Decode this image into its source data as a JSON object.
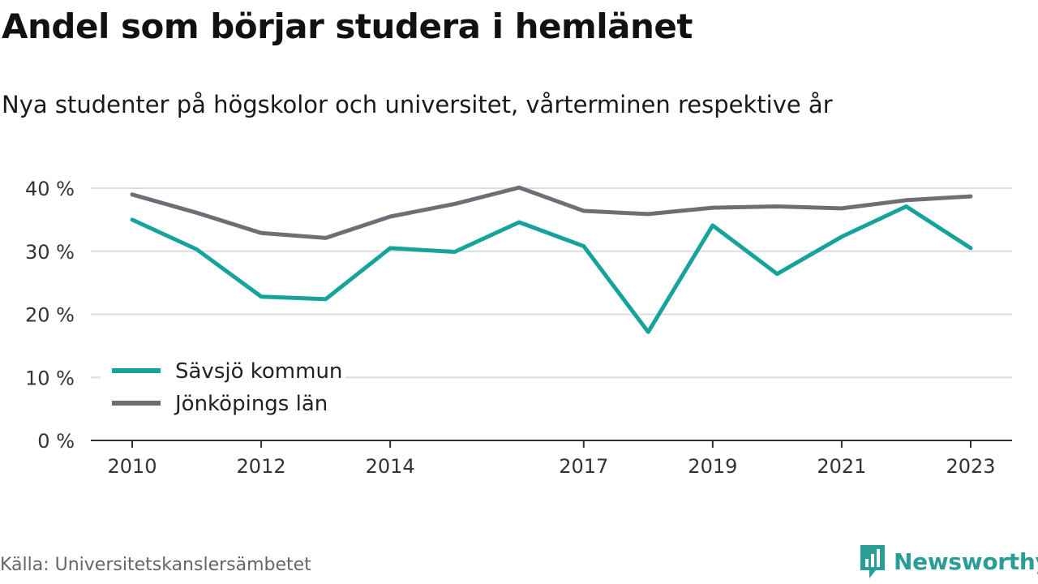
{
  "header": {
    "title": "Andel som börjar studera i hemlänet",
    "subtitle": "Nya studenter på högskolor och universitet, vårterminen respektive år"
  },
  "footer": {
    "source": "Källa: Universitetskanslersämbetet",
    "brand": "Newsworthy",
    "brand_icon": "bar-chart-speech-bubble-icon"
  },
  "colors": {
    "savsjo": "#17a39b",
    "jonkoping": "#6f6e76",
    "grid": "#dddddd",
    "axis": "#333333",
    "brand": "#2a9d96"
  },
  "chart_data": {
    "type": "line",
    "x": [
      2010,
      2011,
      2012,
      2013,
      2014,
      2015,
      2016,
      2017,
      2018,
      2019,
      2020,
      2021,
      2022,
      2023
    ],
    "x_tick_labels": [
      "2010",
      "2012",
      "2014",
      "2017",
      "2019",
      "2021",
      "2023"
    ],
    "y_tick_labels": [
      "0 %",
      "10 %",
      "20 %",
      "30 %",
      "40 %"
    ],
    "y_ticks": [
      0,
      10,
      20,
      30,
      40
    ],
    "ylim": [
      0,
      40
    ],
    "grid": true,
    "legend_position": "bottom-left",
    "series": [
      {
        "name": "Sävsjö kommun",
        "color": "#17a39b",
        "values": [
          35.0,
          30.3,
          22.8,
          22.4,
          30.5,
          29.9,
          34.6,
          30.8,
          17.2,
          34.1,
          26.4,
          32.3,
          37.1,
          30.5
        ]
      },
      {
        "name": "Jönköpings län",
        "color": "#6f6e76",
        "values": [
          39.0,
          36.1,
          32.9,
          32.1,
          35.5,
          37.5,
          40.1,
          36.4,
          35.9,
          36.9,
          37.1,
          36.8,
          38.1,
          38.7
        ]
      }
    ]
  }
}
